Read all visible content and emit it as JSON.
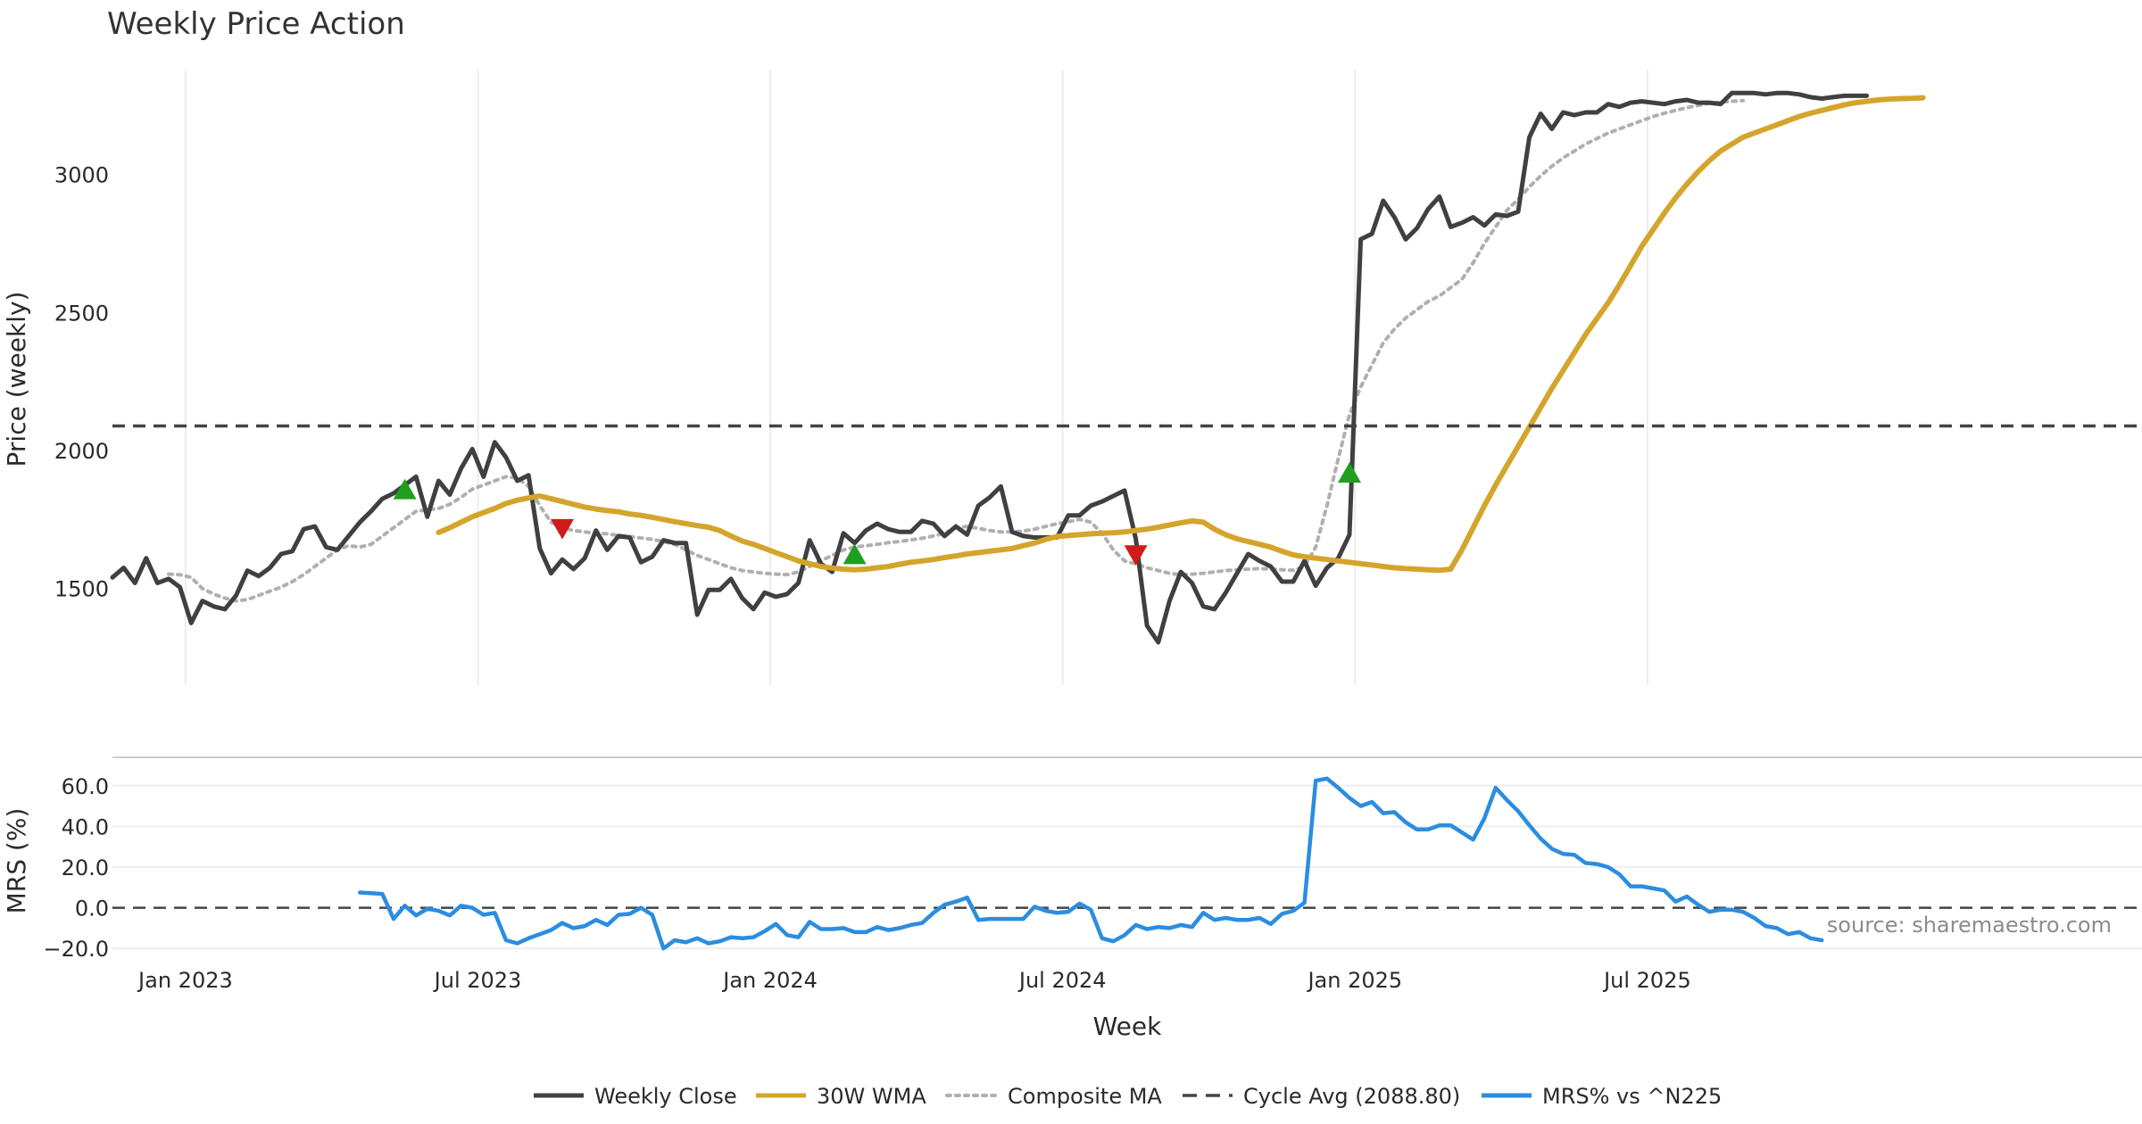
{
  "chart_data": [
    {
      "type": "line",
      "title": "Weekly Price Action",
      "ylabel": "Price (weekly)",
      "xlabel": "",
      "ylim": [
        1150,
        3380
      ],
      "x_ticks": [
        "Jan 2023",
        "Jul 2023",
        "Jan 2024",
        "Jul 2024",
        "Jan 2025",
        "Jul 2025"
      ],
      "y_ticks": [
        1500,
        2000,
        2500,
        3000
      ],
      "grid": "vertical",
      "legend_position": "bottom",
      "series": [
        {
          "name": "Weekly Close",
          "color": "#404040",
          "start_week": 0,
          "values": [
            1540,
            1575,
            1520,
            1610,
            1520,
            1535,
            1505,
            1375,
            1455,
            1435,
            1425,
            1475,
            1565,
            1545,
            1575,
            1625,
            1635,
            1715,
            1725,
            1650,
            1640,
            1690,
            1740,
            1780,
            1825,
            1845,
            1875,
            1905,
            1760,
            1890,
            1840,
            1935,
            2005,
            1905,
            2030,
            1975,
            1890,
            1910,
            1645,
            1555,
            1605,
            1570,
            1610,
            1710,
            1640,
            1690,
            1685,
            1595,
            1615,
            1675,
            1665,
            1665,
            1405,
            1495,
            1495,
            1535,
            1465,
            1425,
            1485,
            1470,
            1480,
            1520,
            1675,
            1590,
            1560,
            1700,
            1665,
            1710,
            1735,
            1715,
            1705,
            1705,
            1745,
            1735,
            1690,
            1725,
            1695,
            1800,
            1830,
            1870,
            1705,
            1690,
            1685,
            1685,
            1685,
            1765,
            1765,
            1800,
            1815,
            1835,
            1855,
            1680,
            1365,
            1305,
            1455,
            1560,
            1520,
            1435,
            1425,
            1485,
            1555,
            1625,
            1600,
            1580,
            1525,
            1525,
            1600,
            1510,
            1575,
            1610,
            1695,
            2765,
            2785,
            2905,
            2845,
            2765,
            2805,
            2875,
            2920,
            2810,
            2825,
            2845,
            2815,
            2855,
            2850,
            2865,
            3135,
            3220,
            3165,
            3225,
            3215,
            3225,
            3225,
            3255,
            3245,
            3260,
            3265,
            3260,
            3255,
            3265,
            3270,
            3260,
            3260,
            3255,
            3295,
            3295,
            3295,
            3290,
            3295,
            3295,
            3290,
            3280,
            3275,
            3280,
            3285,
            3285,
            3285
          ]
        },
        {
          "name": "30W WMA",
          "color": "#d4a52c",
          "start_week": 29,
          "values": [
            1703,
            1720,
            1740,
            1760,
            1775,
            1790,
            1808,
            1820,
            1828,
            1835,
            1825,
            1815,
            1805,
            1795,
            1788,
            1782,
            1778,
            1770,
            1765,
            1758,
            1750,
            1742,
            1735,
            1728,
            1722,
            1710,
            1690,
            1672,
            1660,
            1645,
            1630,
            1615,
            1600,
            1590,
            1580,
            1574,
            1570,
            1568,
            1570,
            1575,
            1580,
            1588,
            1595,
            1600,
            1605,
            1612,
            1618,
            1625,
            1630,
            1635,
            1640,
            1645,
            1655,
            1665,
            1678,
            1688,
            1692,
            1695,
            1698,
            1700,
            1702,
            1705,
            1710,
            1715,
            1722,
            1730,
            1738,
            1745,
            1740,
            1715,
            1695,
            1680,
            1670,
            1660,
            1650,
            1635,
            1622,
            1615,
            1610,
            1605,
            1600,
            1595,
            1590,
            1585,
            1580,
            1575,
            1572,
            1570,
            1568,
            1566,
            1570,
            1640,
            1720,
            1800,
            1875,
            1945,
            2015,
            2085,
            2155,
            2225,
            2290,
            2355,
            2420,
            2478,
            2535,
            2600,
            2670,
            2740,
            2800,
            2860,
            2915,
            2965,
            3010,
            3050,
            3085,
            3110,
            3135,
            3150,
            3165,
            3180,
            3195,
            3210,
            3222,
            3232,
            3242,
            3252,
            3260,
            3265,
            3270,
            3273,
            3275,
            3276,
            3278
          ]
        },
        {
          "name": "Composite MA",
          "color": "#b0b0b0",
          "start_week": 5,
          "values": [
            1552,
            1550,
            1540,
            1500,
            1480,
            1465,
            1455,
            1460,
            1475,
            1490,
            1505,
            1525,
            1550,
            1580,
            1610,
            1640,
            1655,
            1650,
            1660,
            1690,
            1720,
            1750,
            1780,
            1785,
            1790,
            1805,
            1830,
            1860,
            1875,
            1890,
            1905,
            1900,
            1870,
            1800,
            1740,
            1720,
            1710,
            1705,
            1700,
            1698,
            1692,
            1688,
            1683,
            1678,
            1670,
            1660,
            1640,
            1620,
            1605,
            1590,
            1575,
            1565,
            1560,
            1555,
            1552,
            1550,
            1560,
            1580,
            1600,
            1620,
            1640,
            1650,
            1655,
            1660,
            1666,
            1670,
            1676,
            1682,
            1690,
            1700,
            1720,
            1725,
            1718,
            1710,
            1705,
            1705,
            1708,
            1715,
            1725,
            1735,
            1742,
            1750,
            1740,
            1700,
            1640,
            1600,
            1590,
            1575,
            1565,
            1555,
            1550,
            1552,
            1555,
            1560,
            1565,
            1568,
            1570,
            1572,
            1570,
            1568,
            1566,
            1580,
            1650,
            1800,
            1970,
            2130,
            2230,
            2310,
            2390,
            2440,
            2480,
            2510,
            2540,
            2560,
            2590,
            2620,
            2680,
            2750,
            2810,
            2870,
            2910,
            2955,
            2995,
            3030,
            3060,
            3085,
            3110,
            3130,
            3150,
            3165,
            3180,
            3195,
            3210,
            3222,
            3232,
            3242,
            3250,
            3258,
            3262,
            3265,
            3268
          ]
        }
      ],
      "reference_lines": [
        {
          "name": "Cycle Avg (2088.80)",
          "value": 2088.8,
          "color": "#444444",
          "style": "dashed"
        }
      ],
      "markers": [
        {
          "week": 26,
          "value": 1855,
          "direction": "up",
          "color": "#1f9e1f"
        },
        {
          "week": 40,
          "value": 1720,
          "direction": "down",
          "color": "#d11a1a"
        },
        {
          "week": 66,
          "value": 1620,
          "direction": "up",
          "color": "#1f9e1f"
        },
        {
          "week": 91,
          "value": 1625,
          "direction": "down",
          "color": "#d11a1a"
        },
        {
          "week": 110,
          "value": 1915,
          "direction": "up",
          "color": "#1f9e1f"
        }
      ]
    },
    {
      "type": "line",
      "title": "",
      "ylabel": "MRS (%)",
      "xlabel": "Week",
      "ylim": [
        -23,
        70
      ],
      "y_ticks": [
        60.0,
        40.0,
        20.0,
        0.0,
        -20.0
      ],
      "x_ticks": [
        "Jan 2023",
        "Jul 2023",
        "Jan 2024",
        "Jul 2024",
        "Jan 2025",
        "Jul 2025"
      ],
      "series": [
        {
          "name": "MRS% vs ^N225",
          "color": "#2b8de0",
          "start_week": 22,
          "values": [
            7.5,
            7.2,
            6.8,
            -5.5,
            1.0,
            -3.8,
            -0.5,
            -1.5,
            -3.8,
            1.0,
            0.0,
            -3.5,
            -2.5,
            -16.0,
            -17.5,
            -15.0,
            -13.0,
            -11.0,
            -7.5,
            -10.0,
            -9.0,
            -6.0,
            -8.5,
            -3.5,
            -3.0,
            0.0,
            -3.5,
            -20.0,
            -16.0,
            -17.0,
            -15.0,
            -17.5,
            -16.5,
            -14.5,
            -15.0,
            -14.5,
            -11.5,
            -8.0,
            -13.5,
            -14.5,
            -7.0,
            -10.5,
            -10.5,
            -10.0,
            -12.0,
            -12.0,
            -9.5,
            -11.0,
            -10.0,
            -8.5,
            -7.5,
            -2.5,
            1.5,
            3.0,
            5.0,
            -6.0,
            -5.5,
            -5.5,
            -5.5,
            -5.5,
            0.5,
            -1.5,
            -2.5,
            -2.0,
            2.0,
            -1.0,
            -15.0,
            -16.5,
            -13.5,
            -8.5,
            -10.5,
            -9.5,
            -10.0,
            -8.5,
            -9.5,
            -2.5,
            -6.0,
            -5.0,
            -6.0,
            -6.0,
            -5.0,
            -8.0,
            -3.0,
            -1.5,
            2.5,
            62.5,
            63.5,
            59.0,
            54.0,
            50.0,
            52.0,
            46.5,
            47.0,
            42.0,
            38.5,
            38.5,
            40.5,
            40.5,
            37.0,
            33.5,
            44.0,
            59.0,
            53.0,
            47.5,
            40.5,
            34.0,
            29.0,
            26.5,
            26.0,
            22.0,
            21.5,
            20.0,
            16.5,
            10.5,
            10.5,
            9.5,
            8.5,
            3.0,
            5.5,
            1.5,
            -2.0,
            -1.0,
            -1.0,
            -2.0,
            -5.0,
            -9.0,
            -10.0,
            -13.0,
            -12.0,
            -15.0,
            -16.0
          ]
        }
      ],
      "reference_lines": [
        {
          "value": 0,
          "color": "#444444",
          "style": "dashed"
        }
      ]
    }
  ],
  "source_note": "source: sharemaestro.com",
  "legend": [
    {
      "label": "Weekly Close",
      "color": "#404040",
      "style": "solid"
    },
    {
      "label": "30W WMA",
      "color": "#d4a52c",
      "style": "solid"
    },
    {
      "label": "Composite MA",
      "color": "#b0b0b0",
      "style": "dotted"
    },
    {
      "label": "Cycle Avg (2088.80)",
      "color": "#444444",
      "style": "dashed"
    },
    {
      "label": "MRS% vs ^N225",
      "color": "#2b8de0",
      "style": "solid"
    }
  ]
}
